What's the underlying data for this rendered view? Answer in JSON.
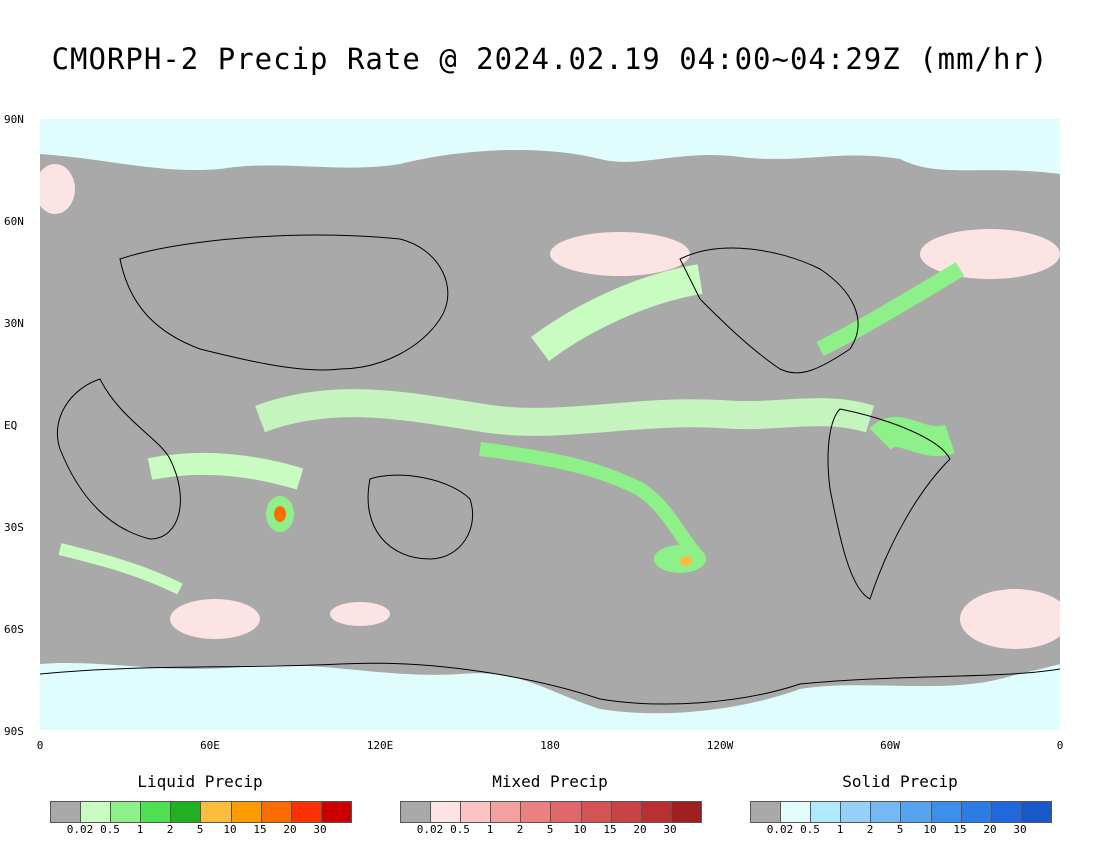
{
  "title": "CMORPH-2 Precip Rate @ 2024.02.19 04:00~04:29Z (mm/hr)",
  "axes": {
    "lat_labels": [
      "90N",
      "60N",
      "30N",
      "EQ",
      "30S",
      "60S",
      "90S"
    ],
    "lon_labels": [
      "0",
      "60E",
      "120E",
      "180",
      "120W",
      "60W",
      "0"
    ]
  },
  "colors": {
    "no_precip": "#a9a9a9",
    "ice_cover": "#e0fdfd",
    "ocean_background": "#a9a9a9"
  },
  "legends": [
    {
      "title": "Liquid Precip",
      "ticks": [
        "0.02",
        "0.5",
        "1",
        "2",
        "5",
        "10",
        "15",
        "20",
        "30"
      ],
      "colors": [
        "#a9a9a9",
        "#c8fcc0",
        "#8ef088",
        "#4ee050",
        "#22b022",
        "#fcbd3c",
        "#fc9c00",
        "#fc6c00",
        "#fc3000",
        "#c80000"
      ]
    },
    {
      "title": "Mixed Precip",
      "ticks": [
        "0.02",
        "0.5",
        "1",
        "2",
        "5",
        "10",
        "15",
        "20",
        "30"
      ],
      "colors": [
        "#a9a9a9",
        "#fde4e4",
        "#fac4c4",
        "#f2a0a0",
        "#ea8080",
        "#e06868",
        "#d45454",
        "#c84444",
        "#b83030",
        "#a02020"
      ]
    },
    {
      "title": "Solid Precip",
      "ticks": [
        "0.02",
        "0.5",
        "1",
        "2",
        "5",
        "10",
        "15",
        "20",
        "30"
      ],
      "colors": [
        "#a9a9a9",
        "#e4fcfc",
        "#b0e8fc",
        "#94d0f8",
        "#74b8f4",
        "#54a4f0",
        "#3c90ec",
        "#2c7ce4",
        "#2068dc",
        "#1858c8"
      ]
    }
  ]
}
